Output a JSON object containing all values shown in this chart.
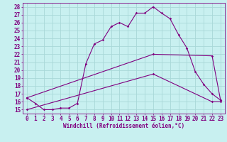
{
  "title": "",
  "xlabel": "Windchill (Refroidissement éolien,°C)",
  "bg_color": "#c8f0f0",
  "grid_color": "#a8d8d8",
  "line_color": "#800080",
  "xlim": [
    -0.5,
    23.5
  ],
  "ylim": [
    14.5,
    28.5
  ],
  "xticks": [
    0,
    1,
    2,
    3,
    4,
    5,
    6,
    7,
    8,
    9,
    10,
    11,
    12,
    13,
    14,
    15,
    16,
    17,
    18,
    19,
    20,
    21,
    22,
    23
  ],
  "yticks": [
    15,
    16,
    17,
    18,
    19,
    20,
    21,
    22,
    23,
    24,
    25,
    26,
    27,
    28
  ],
  "line1_x": [
    0,
    1,
    2,
    3,
    4,
    5,
    6,
    7,
    8,
    9,
    10,
    11,
    12,
    13,
    14,
    15,
    16,
    17,
    18,
    19,
    20,
    21,
    22,
    23
  ],
  "line1_y": [
    16.5,
    15.8,
    15.0,
    15.0,
    15.2,
    15.2,
    15.8,
    20.8,
    23.3,
    23.8,
    25.5,
    26.0,
    25.5,
    27.2,
    27.2,
    28.0,
    27.2,
    26.5,
    24.5,
    22.8,
    19.8,
    18.2,
    17.0,
    16.2
  ],
  "line2_x": [
    0,
    15,
    22,
    23
  ],
  "line2_y": [
    16.5,
    22.0,
    21.8,
    16.2
  ],
  "line3_x": [
    0,
    15,
    22,
    23
  ],
  "line3_y": [
    15.0,
    19.5,
    16.0,
    16.0
  ],
  "tick_fontsize": 5.5,
  "xlabel_fontsize": 5.5
}
